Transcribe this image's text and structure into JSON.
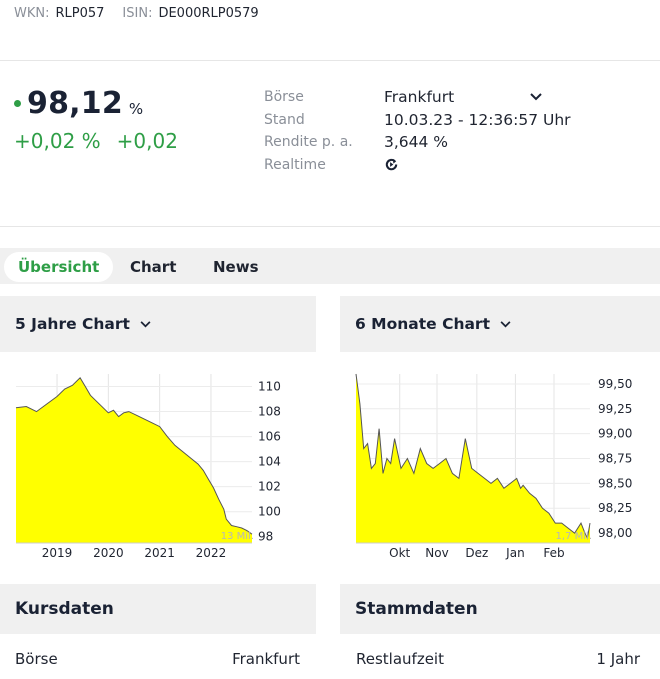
{
  "ids": {
    "wkn_label": "WKN:",
    "wkn": "RLP057",
    "isin_label": "ISIN:",
    "isin": "DE000RLP0579"
  },
  "quote": {
    "price": "98,12",
    "unit": "%",
    "change_pct": "+0,02 %",
    "change_abs": "+0,02"
  },
  "meta": [
    {
      "label": "Börse",
      "value": "Frankfurt"
    },
    {
      "label": "Stand",
      "value": "10.03.23 - 12:36:57 Uhr"
    },
    {
      "label": "Rendite p. a.",
      "value": "3,644 %"
    },
    {
      "label": "Realtime",
      "value": ""
    }
  ],
  "tabs": [
    "Übersicht",
    "Chart",
    "News"
  ],
  "panels": {
    "left_title": "5 Jahre Chart",
    "right_title": "6 Monate Chart"
  },
  "colors": {
    "accent": "#2e9e46",
    "chart_fill": "#ffff00",
    "chart_line": "#555555"
  },
  "chart_data": [
    {
      "type": "area",
      "x_ticks": [
        "2019",
        "2020",
        "2021",
        "2022"
      ],
      "y_ticks": [
        "110",
        "108",
        "106",
        "104",
        "102",
        "100",
        "98"
      ],
      "ylim": [
        97.5,
        111
      ],
      "volume_label": "13 Mil.",
      "x": [
        2018.2,
        2018.4,
        2018.6,
        2018.8,
        2019.0,
        2019.15,
        2019.3,
        2019.45,
        2019.55,
        2019.65,
        2019.75,
        2019.9,
        2020.0,
        2020.1,
        2020.2,
        2020.3,
        2020.4,
        2020.55,
        2020.7,
        2020.85,
        2021.0,
        2021.15,
        2021.3,
        2021.45,
        2021.6,
        2021.75,
        2021.85,
        2021.95,
        2022.05,
        2022.15,
        2022.25,
        2022.3,
        2022.4,
        2022.5,
        2022.6,
        2022.7,
        2022.8
      ],
      "values": [
        108.3,
        108.4,
        108.0,
        108.6,
        109.2,
        109.8,
        110.1,
        110.7,
        110.0,
        109.3,
        108.9,
        108.3,
        107.9,
        108.1,
        107.6,
        107.9,
        108.0,
        107.7,
        107.4,
        107.1,
        106.8,
        106.0,
        105.3,
        104.8,
        104.3,
        103.8,
        103.3,
        102.6,
        101.9,
        101.0,
        100.2,
        99.4,
        98.9,
        98.8,
        98.7,
        98.5,
        98.2
      ]
    },
    {
      "type": "area",
      "x_ticks": [
        "Okt",
        "Nov",
        "Dez",
        "Jan",
        "Feb"
      ],
      "y_ticks": [
        "99,50",
        "99,25",
        "99,00",
        "98,75",
        "98,50",
        "98,25",
        "98,00"
      ],
      "ylim": [
        97.9,
        99.6
      ],
      "volume_label": "1,7 Mil.",
      "x": [
        0,
        3,
        6,
        9,
        12,
        15,
        18,
        21,
        24,
        27,
        30,
        35,
        40,
        45,
        50,
        55,
        60,
        65,
        70,
        75,
        80,
        85,
        90,
        95,
        100,
        105,
        110,
        115,
        120,
        125,
        128,
        130,
        135,
        140,
        145,
        150,
        155,
        160,
        165,
        170,
        175,
        178,
        180,
        182
      ],
      "values": [
        99.6,
        99.3,
        98.85,
        98.9,
        98.65,
        98.7,
        99.05,
        98.6,
        98.75,
        98.7,
        98.95,
        98.65,
        98.75,
        98.6,
        98.85,
        98.7,
        98.65,
        98.7,
        98.75,
        98.6,
        98.55,
        98.95,
        98.65,
        98.6,
        98.55,
        98.5,
        98.55,
        98.45,
        98.5,
        98.55,
        98.45,
        98.48,
        98.4,
        98.35,
        98.25,
        98.2,
        98.1,
        98.1,
        98.05,
        98.0,
        98.1,
        98.0,
        97.95,
        98.1
      ]
    }
  ],
  "kursdaten": {
    "title": "Kursdaten",
    "rows": [
      {
        "label": "Börse",
        "value": "Frankfurt"
      }
    ]
  },
  "stammdaten": {
    "title": "Stammdaten",
    "rows": [
      {
        "label": "Restlaufzeit",
        "value": "1 Jahr"
      }
    ]
  }
}
